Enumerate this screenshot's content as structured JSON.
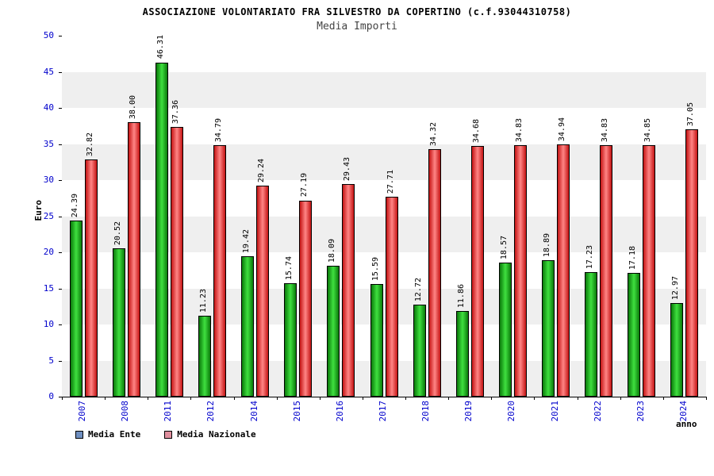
{
  "header": {
    "title": "ASSOCIAZIONE VOLONTARIATO FRA SILVESTRO DA COPERTINO (c.f.93044310758)",
    "subtitle": "Media Importi"
  },
  "chart_data": {
    "type": "bar",
    "title": "ASSOCIAZIONE VOLONTARIATO FRA SILVESTRO DA COPERTINO (c.f.93044310758)",
    "subtitle": "Media Importi",
    "xlabel": "anno",
    "ylabel": "Euro",
    "ylim": [
      0,
      50
    ],
    "ytick_step": 5,
    "grid": "horizontal-bands",
    "legend_position": "bottom-left",
    "axis_text_color": "#0000cc",
    "band_colors": [
      "#efefef",
      "#ffffff"
    ],
    "categories": [
      "2007",
      "2008",
      "2011",
      "2012",
      "2014",
      "2015",
      "2016",
      "2017",
      "2018",
      "2019",
      "2020",
      "2021",
      "2022",
      "2023",
      "2024"
    ],
    "series": [
      {
        "name": "Media Ente",
        "edge_color": "#0a7a0a",
        "center_color": "#3fe03f",
        "values": [
          24.39,
          20.52,
          46.31,
          11.23,
          19.42,
          15.74,
          18.09,
          15.59,
          12.72,
          11.86,
          18.57,
          18.89,
          17.23,
          17.18,
          12.97
        ]
      },
      {
        "name": "Media Nazionale",
        "edge_color": "#c41414",
        "center_color": "#ff8585",
        "values": [
          32.82,
          38.0,
          37.36,
          34.79,
          29.24,
          27.19,
          29.43,
          27.71,
          34.32,
          34.68,
          34.83,
          34.94,
          34.83,
          34.85,
          37.05
        ]
      }
    ],
    "legend": [
      {
        "label": "Media Ente",
        "swatch": "#6f8fc0"
      },
      {
        "label": "Media Nazionale",
        "swatch": "#e08f9e"
      }
    ]
  }
}
